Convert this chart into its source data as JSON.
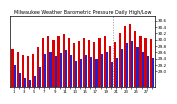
{
  "title": "Milwaukee Weather Barometric Pressure Daily High/Low",
  "ylim": [
    28.5,
    30.75
  ],
  "yticks": [
    29.0,
    29.2,
    29.4,
    29.6,
    29.8,
    30.0,
    30.2,
    30.4,
    30.6
  ],
  "background_color": "#ffffff",
  "bar_width": 0.42,
  "days": [
    1,
    2,
    3,
    4,
    5,
    6,
    7,
    8,
    9,
    10,
    11,
    12,
    13,
    14,
    15,
    16,
    17,
    18,
    19,
    20,
    21,
    22,
    23,
    24,
    25,
    26,
    27,
    28
  ],
  "highs": [
    29.72,
    29.6,
    29.52,
    29.48,
    29.55,
    29.78,
    30.05,
    30.1,
    29.98,
    30.1,
    30.18,
    30.05,
    29.88,
    29.95,
    30.05,
    29.98,
    29.92,
    30.05,
    30.1,
    29.8,
    29.92,
    30.22,
    30.42,
    30.48,
    30.28,
    30.12,
    30.05,
    30.02
  ],
  "lows": [
    29.2,
    28.95,
    28.8,
    28.72,
    28.85,
    29.15,
    29.55,
    29.62,
    29.48,
    29.58,
    29.68,
    29.52,
    29.32,
    29.4,
    29.52,
    29.45,
    29.38,
    29.55,
    29.6,
    29.28,
    29.42,
    29.72,
    29.9,
    29.95,
    29.78,
    29.6,
    29.5,
    29.42
  ],
  "high_color": "#dd0000",
  "low_color": "#2222cc",
  "vline_pos": 19.5,
  "vline_color": "#999999",
  "vline_style": "dotted",
  "title_fontsize": 3.5,
  "tick_fontsize": 3.0,
  "xlabel_fontsize": 2.8
}
